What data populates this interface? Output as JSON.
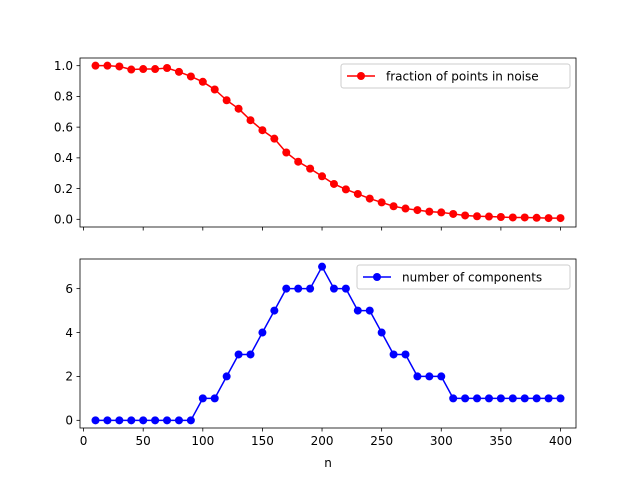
{
  "chart_data": [
    {
      "type": "line",
      "title": "",
      "xlabel": "",
      "ylabel": "",
      "xlim": [
        -3,
        413
      ],
      "ylim": [
        -0.05,
        1.05
      ],
      "x": [
        10,
        20,
        30,
        40,
        50,
        60,
        70,
        80,
        90,
        100,
        110,
        120,
        130,
        140,
        150,
        160,
        170,
        180,
        190,
        200,
        210,
        220,
        230,
        240,
        250,
        260,
        270,
        280,
        290,
        300,
        310,
        320,
        330,
        340,
        350,
        360,
        370,
        380,
        390,
        400
      ],
      "xticks": [
        0,
        50,
        100,
        150,
        200,
        250,
        300,
        350,
        400
      ],
      "xtick_labels_visible": false,
      "yticks": [
        0.0,
        0.2,
        0.4,
        0.6,
        0.8,
        1.0
      ],
      "ytick_labels": [
        "0.0",
        "0.2",
        "0.4",
        "0.6",
        "0.8",
        "1.0"
      ],
      "grid": false,
      "legend_position": "upper right",
      "series": [
        {
          "name": "fraction of points in noise",
          "color": "#ff0000",
          "marker": "circle",
          "values": [
            1.0,
            1.0,
            0.995,
            0.975,
            0.978,
            0.978,
            0.985,
            0.96,
            0.93,
            0.895,
            0.845,
            0.775,
            0.72,
            0.645,
            0.58,
            0.525,
            0.435,
            0.375,
            0.33,
            0.28,
            0.23,
            0.195,
            0.165,
            0.135,
            0.11,
            0.085,
            0.07,
            0.06,
            0.05,
            0.045,
            0.035,
            0.025,
            0.02,
            0.018,
            0.015,
            0.012,
            0.012,
            0.01,
            0.008,
            0.008
          ]
        }
      ]
    },
    {
      "type": "line",
      "title": "",
      "xlabel": "n",
      "ylabel": "",
      "xlim": [
        -3,
        413
      ],
      "ylim": [
        -0.35,
        7.35
      ],
      "x": [
        10,
        20,
        30,
        40,
        50,
        60,
        70,
        80,
        90,
        100,
        110,
        120,
        130,
        140,
        150,
        160,
        170,
        180,
        190,
        200,
        210,
        220,
        230,
        240,
        250,
        260,
        270,
        280,
        290,
        300,
        310,
        320,
        330,
        340,
        350,
        360,
        370,
        380,
        390,
        400
      ],
      "xticks": [
        0,
        50,
        100,
        150,
        200,
        250,
        300,
        350,
        400
      ],
      "xtick_labels": [
        "0",
        "50",
        "100",
        "150",
        "200",
        "250",
        "300",
        "350",
        "400"
      ],
      "yticks": [
        0,
        2,
        4,
        6
      ],
      "ytick_labels": [
        "0",
        "2",
        "4",
        "6"
      ],
      "grid": false,
      "legend_position": "upper right",
      "series": [
        {
          "name": "number of components",
          "color": "#0000ff",
          "marker": "circle",
          "values": [
            0,
            0,
            0,
            0,
            0,
            0,
            0,
            0,
            0,
            1,
            1,
            2,
            3,
            3,
            4,
            5,
            6,
            6,
            6,
            7,
            6,
            6,
            5,
            5,
            4,
            3,
            3,
            2,
            2,
            2,
            1,
            1,
            1,
            1,
            1,
            1,
            1,
            1,
            1,
            1
          ]
        }
      ]
    }
  ]
}
